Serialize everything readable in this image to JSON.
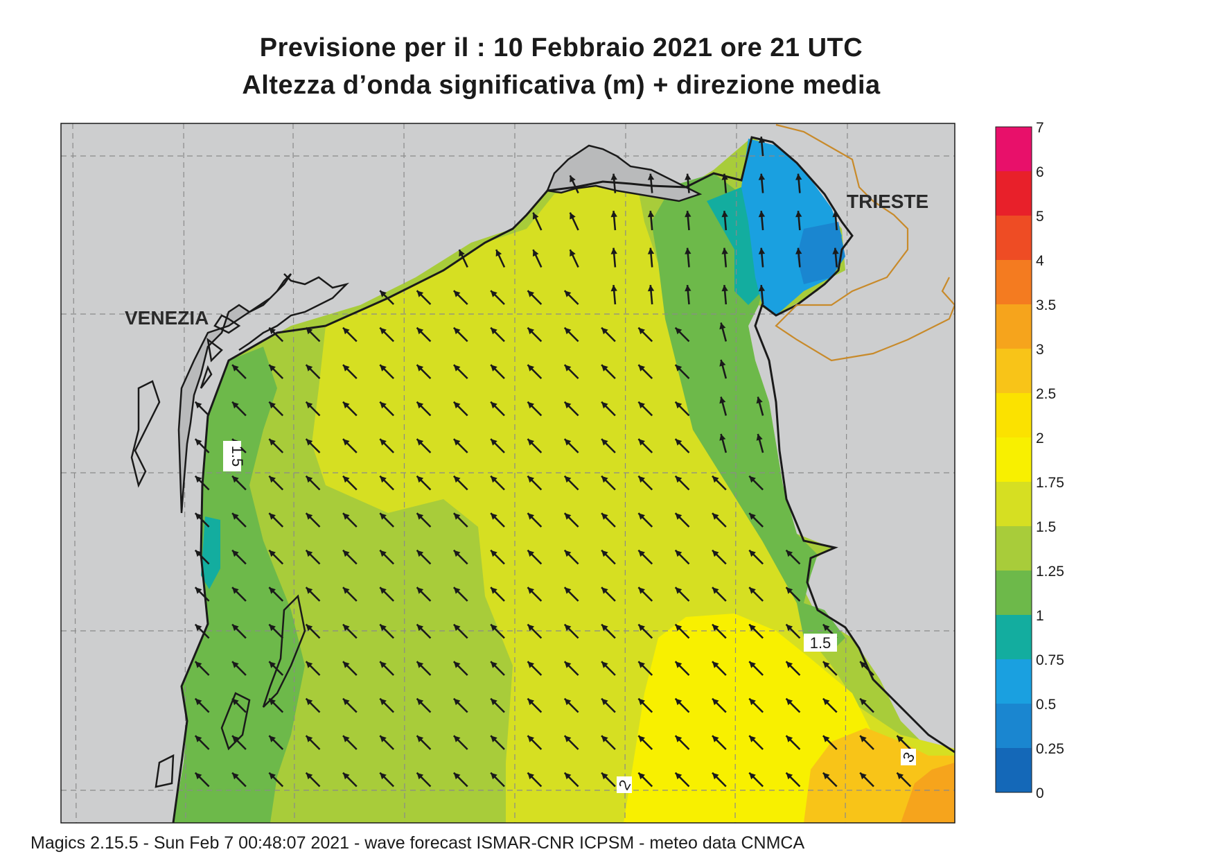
{
  "title_line1": "Previsione per il  :  10  Febbraio 2021   ore 21 UTC",
  "title_line2": "Altezza d’onda significativa (m) + direzione media",
  "footer": "Magics 2.15.5 - Sun Feb  7 00:48:07 2021 - wave forecast  ISMAR-CNR  ICPSM - meteo data   CNMCA",
  "cities": [
    {
      "name": "VENEZIA"
    },
    {
      "name": "TRIESTE"
    }
  ],
  "contour_labels": [
    "1.5",
    "1.5",
    "2",
    "3"
  ],
  "legend": {
    "labels": [
      "7",
      "6",
      "5",
      "4",
      "3.5",
      "3",
      "2.5",
      "2",
      "1.75",
      "1.5",
      "1.25",
      "1",
      "0.75",
      "0.5",
      "0.25",
      "0"
    ],
    "colors": [
      "#e8106a",
      "#e8202a",
      "#ee4c24",
      "#f47b20",
      "#f6a41c",
      "#f8c418",
      "#fbe200",
      "#f8f000",
      "#d6df22",
      "#a8cc3a",
      "#6db94a",
      "#13ad9f",
      "#1aa0e0",
      "#1a86d0",
      "#1468b8",
      "#0a4ea6"
    ]
  },
  "colors": {
    "land": "#cdcecf",
    "coast": "#1a1a1a",
    "border": "#c88a2a",
    "grid": "#8a8a8a",
    "arrow": "#1a1a1a"
  },
  "arrow_field": {
    "direction": "north-west",
    "description_visible": false
  }
}
